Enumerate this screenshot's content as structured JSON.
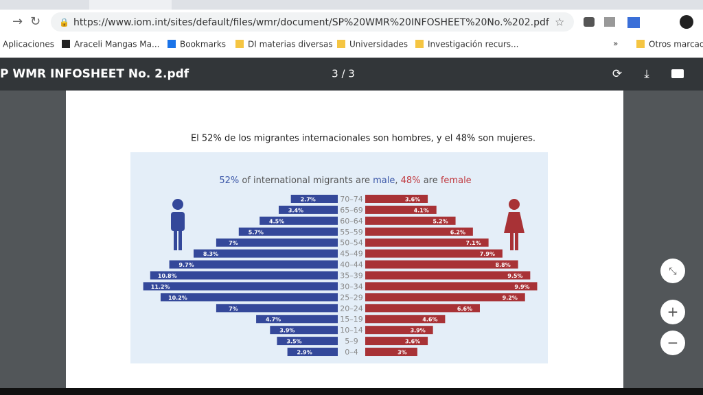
{
  "browser": {
    "url": "https://www.iom.int/sites/default/files/wmr/document/SP%20WMR%20INFOSHEET%20No.%202.pdf",
    "bookmarks": [
      "Aplicaciones",
      "Araceli Mangas Ma...",
      "Bookmarks",
      "DI materias diversas",
      "Universidades",
      "Investigación recurs...",
      "Otros marcado"
    ]
  },
  "viewer": {
    "title": "P WMR INFOSHEET No. 2.pdf",
    "page": "3 / 3"
  },
  "document": {
    "caption": "El 52% de los migrantes internacionales son hombres, y el 48% son mujeres."
  },
  "chart_data": {
    "type": "pyramid",
    "title_parts": [
      {
        "text": "52%",
        "color": "#3b57a8"
      },
      {
        "text": " of international migrants are ",
        "color": "#555555"
      },
      {
        "text": "male",
        "color": "#3b57a8"
      },
      {
        "text": ", ",
        "color": "#555555"
      },
      {
        "text": "48%",
        "color": "#c0393f"
      },
      {
        "text": " are ",
        "color": "#555555"
      },
      {
        "text": "female",
        "color": "#c0393f"
      }
    ],
    "categories": [
      "70–74",
      "65–69",
      "60–64",
      "55–59",
      "50–54",
      "45–49",
      "40–44",
      "35–39",
      "30–34",
      "25–29",
      "20–24",
      "15–19",
      "10–14",
      "5–9",
      "0–4"
    ],
    "series": [
      {
        "color": "#34489a",
        "values": [
          2.7,
          3.4,
          4.5,
          5.7,
          7,
          8.3,
          9.7,
          10.8,
          11.2,
          10.2,
          7,
          4.7,
          3.9,
          3.5,
          2.9
        ],
        "value_labels": [
          "2.7%",
          "3.4%",
          "4.5%",
          "5.7%",
          "7%",
          "8.3%",
          "9.7%",
          "10.8%",
          "11.2%",
          "10.2%",
          "7%",
          "4.7%",
          "3.9%",
          "3.5%",
          "2.9%"
        ]
      },
      {
        "color": "#a83236",
        "values": [
          3.6,
          4.1,
          5.2,
          6.2,
          7.1,
          7.9,
          8.8,
          9.5,
          9.9,
          9.2,
          6.6,
          4.6,
          3.9,
          3.6,
          3
        ],
        "value_labels": [
          "3.6%",
          "4.1%",
          "5.2%",
          "6.2%",
          "7.1%",
          "7.9%",
          "8.8%",
          "9.5%",
          "9.9%",
          "9.2%",
          "6.6%",
          "4.6%",
          "3.9%",
          "3.6%",
          "3%"
        ]
      }
    ]
  }
}
